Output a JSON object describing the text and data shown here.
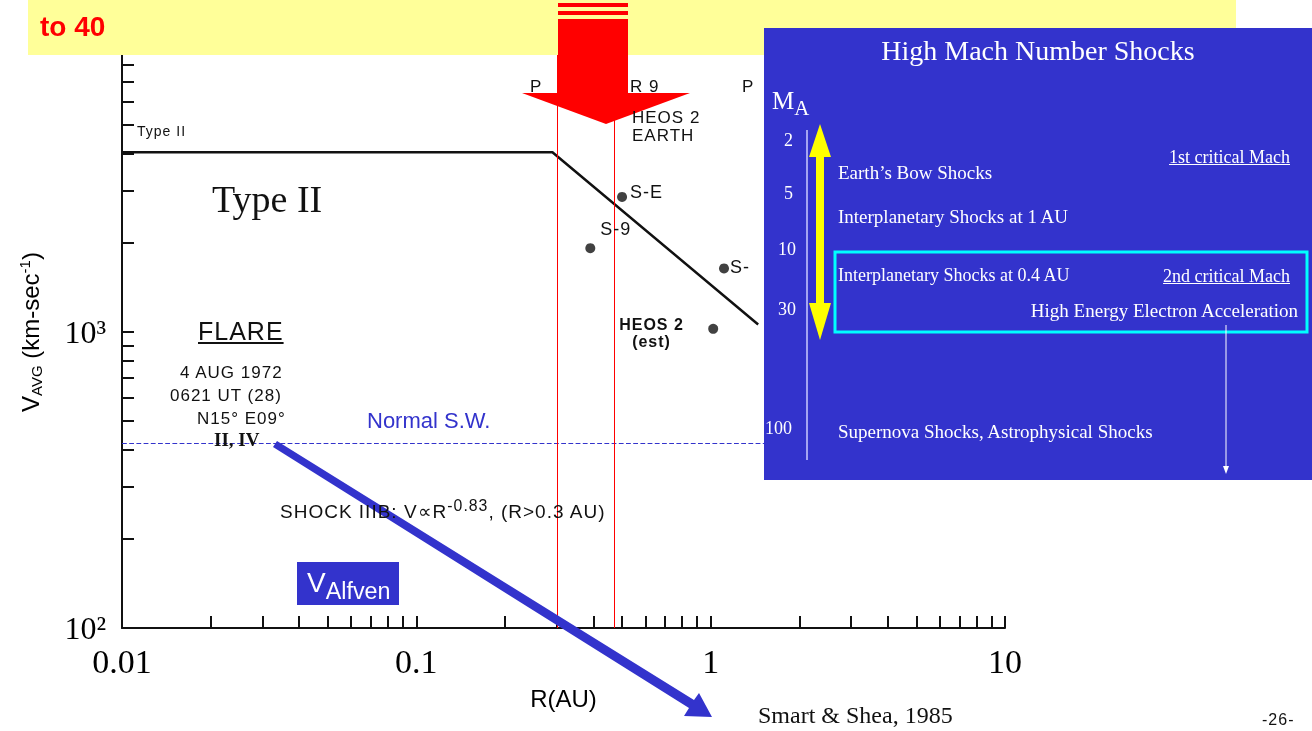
{
  "chart_data": {
    "type": "scatter",
    "title": "to 40",
    "xlabel": "R(AU)",
    "ylabel": "V$_{AVG}$ (km-sec$^{-1}$)",
    "xlim": [
      0.01,
      10
    ],
    "ylim": [
      100,
      10000
    ],
    "xticks": [
      0.01,
      {
        "value": 0.02,
        "label": null
      },
      {
        "value": 0.03,
        "label": null
      },
      {
        "value": 0.04,
        "label": null
      },
      {
        "value": 0.05,
        "label": null
      },
      {
        "value": 0.06,
        "label": null
      },
      {
        "value": 0.07,
        "label": null
      },
      {
        "value": 0.08,
        "label": null
      },
      {
        "value": 0.09,
        "label": null
      },
      0.1,
      {
        "value": 0.2,
        "label": null
      },
      {
        "value": 0.3,
        "label": null
      },
      {
        "value": 0.4,
        "label": null
      },
      {
        "value": 0.5,
        "label": null
      },
      {
        "value": 0.6,
        "label": null
      },
      {
        "value": 0.7,
        "label": null
      },
      {
        "value": 0.8,
        "label": null
      },
      {
        "value": 0.9,
        "label": null
      },
      1,
      {
        "value": 2,
        "label": null
      },
      {
        "value": 3,
        "label": null
      },
      {
        "value": 4,
        "label": null
      },
      {
        "value": 5,
        "label": null
      },
      {
        "value": 6,
        "label": null
      },
      {
        "value": 7,
        "label": null
      },
      {
        "value": 8,
        "label": null
      },
      {
        "value": 9,
        "label": null
      },
      10
    ],
    "yticks": [
      {
        "value": 100,
        "label": "10²"
      },
      {
        "value": 200,
        "label": null
      },
      {
        "value": 300,
        "label": null
      },
      {
        "value": 400,
        "label": null
      },
      {
        "value": 500,
        "label": null
      },
      {
        "value": 600,
        "label": null
      },
      {
        "value": 700,
        "label": null
      },
      {
        "value": 800,
        "label": null
      },
      {
        "value": 900,
        "label": null
      },
      {
        "value": 1000,
        "label": "10³"
      },
      {
        "value": 2000,
        "label": null
      },
      {
        "value": 3000,
        "label": null
      },
      {
        "value": 4000,
        "label": null
      },
      {
        "value": 5000,
        "label": null
      },
      {
        "value": 6000,
        "label": null
      },
      {
        "value": 7000,
        "label": null
      },
      {
        "value": 8000,
        "label": null
      },
      {
        "value": 9000,
        "label": null
      }
    ],
    "log": "xy",
    "series": [
      {
        "type": "line",
        "color": "#111111",
        "marker": "none",
        "x": [
          0.01,
          0.29,
          1.45
        ],
        "values": [
          4050,
          4050,
          1060
        ]
      },
      {
        "type": "scatter",
        "color": "#111111",
        "marker": "circle",
        "x": [
          0.5,
          0.39,
          1.11,
          1.02
        ],
        "values": [
          2860,
          1920,
          1640,
          1025
        ]
      }
    ],
    "ref_lines": [
      {
        "axis": "y",
        "value": 422,
        "label": "Normal S.W.",
        "color": "#3333cc",
        "line_style": "dashed"
      },
      {
        "axis": "x",
        "value": 0.3,
        "color": "#ff0000",
        "line_style": "solid"
      },
      {
        "axis": "x",
        "value": 0.47,
        "color": "#ff0000",
        "line_style": "solid"
      }
    ],
    "annotations": [
      "Type II",
      "Type II",
      {
        "text": "S-E",
        "x": 0.5,
        "y": 2860
      },
      {
        "text": "S-9",
        "x": 0.39,
        "y": 1920
      },
      {
        "text": "S-",
        "x": 1.11,
        "y": 1640
      },
      {
        "text": "HEOS 2\n(est)",
        "x": 1.02,
        "y": 1025
      },
      "HEOS 2\nEARTH",
      "P",
      "R 9",
      "P",
      "FLARE",
      "4 AUG 1972",
      "0621 UT (28)",
      "N15° E09°",
      "II, IV",
      "SHOCK IIIB: V∝R$^{-0.83}$, (R>0.3 AU)",
      "V$_{Alfven}$",
      "Smart & Shea, 1985",
      "-26-",
      "High Mach Number Shocks",
      "M$_{A}$",
      "2",
      "5",
      "10",
      "30",
      "100",
      "Earth’s Bow Shocks",
      "Interplanetary Shocks at 1 AU",
      "Interplanetary Shocks at 0.4 AU",
      "High Energy Electron Acceleration",
      "Supernova Shocks, Astrophysical Shocks",
      "1st critical Mach",
      "2nd critical Mach"
    ]
  }
}
